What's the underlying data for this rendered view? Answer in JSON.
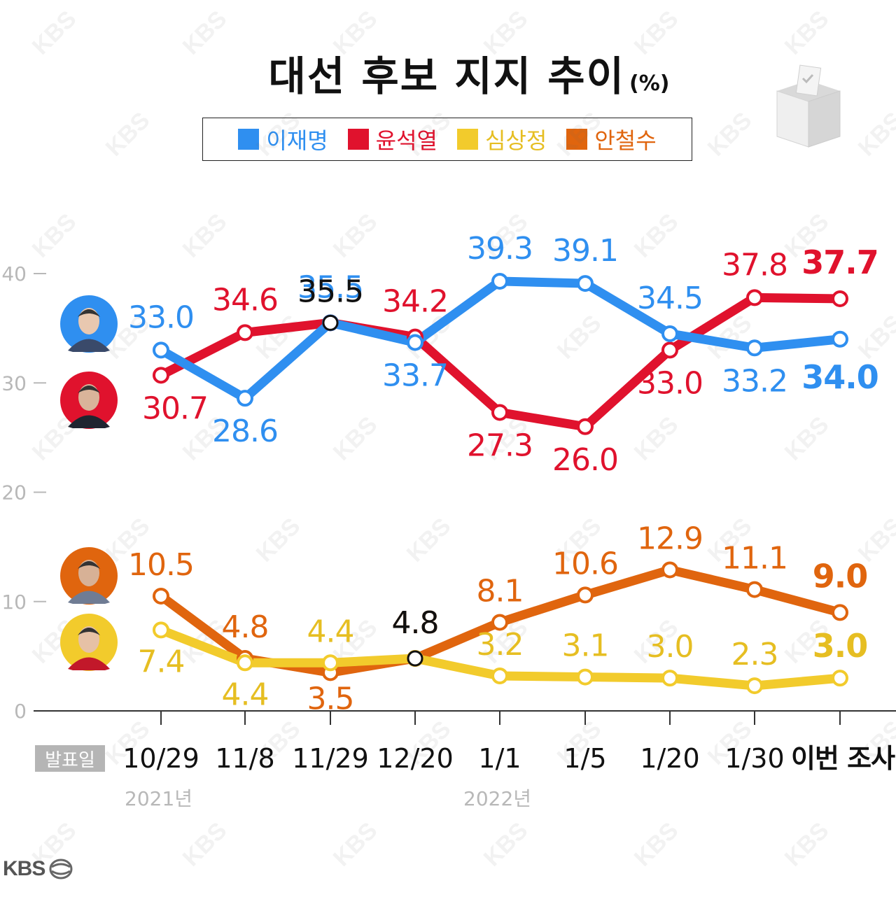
{
  "title": {
    "main": "대선 후보 지지 추이",
    "unit": "(%)"
  },
  "legend": [
    {
      "name": "이재명",
      "color": "#2f8ff0"
    },
    {
      "name": "윤석열",
      "color": "#e0122d"
    },
    {
      "name": "심상정",
      "color": "#f2cb2c"
    },
    {
      "name": "안철수",
      "color": "#e0650e"
    }
  ],
  "x_axis": {
    "badge": "발표일",
    "labels": [
      "10/29",
      "11/8",
      "11/29",
      "12/20",
      "1/1",
      "1/5",
      "1/20",
      "1/30",
      "이번 조사"
    ],
    "year_2021": "2021년",
    "year_2022": "2022년"
  },
  "y_ticks": [
    "0",
    "10",
    "20",
    "30",
    "40"
  ],
  "logo": "KBS",
  "watermark": "KBS",
  "chart_data": {
    "type": "line",
    "categories": [
      "10/29",
      "11/8",
      "11/29",
      "12/20",
      "1/1",
      "1/5",
      "1/20",
      "1/30",
      "이번 조사"
    ],
    "ylim": [
      0,
      40
    ],
    "grid": false,
    "series": [
      {
        "name": "이재명",
        "color": "#2f8ff0",
        "label_color": "#2f8ff0",
        "values": [
          33.0,
          28.6,
          35.5,
          33.7,
          39.3,
          39.1,
          34.5,
          33.2,
          34.0
        ],
        "labels": [
          "33.0",
          "28.6",
          "35.5",
          "33.7",
          "39.3",
          "39.1",
          "34.5",
          "33.2",
          "34.0"
        ]
      },
      {
        "name": "윤석열",
        "color": "#e0122d",
        "label_color": "#e0122d",
        "values": [
          30.7,
          34.6,
          35.5,
          34.2,
          27.3,
          26.0,
          33.0,
          37.8,
          37.7
        ],
        "labels": [
          "30.7",
          "34.6",
          "35.5",
          "34.2",
          "27.3",
          "26.0",
          "33.0",
          "37.8",
          "37.7"
        ]
      },
      {
        "name": "안철수",
        "color": "#e0650e",
        "label_color": "#e0650e",
        "values": [
          10.5,
          4.8,
          3.5,
          4.8,
          8.1,
          10.6,
          12.9,
          11.1,
          9.0
        ],
        "labels": [
          "10.5",
          "4.8",
          "3.5",
          "4.8",
          "8.1",
          "10.6",
          "12.9",
          "11.1",
          "9.0"
        ]
      },
      {
        "name": "심상정",
        "color": "#f2cb2c",
        "label_color": "#e6be22",
        "values": [
          7.4,
          4.4,
          4.4,
          4.8,
          3.2,
          3.1,
          3.0,
          2.3,
          3.0
        ],
        "labels": [
          "7.4",
          "4.4",
          "4.4",
          "4.8",
          "3.2",
          "3.1",
          "3.0",
          "2.3",
          "3.0"
        ]
      }
    ]
  }
}
